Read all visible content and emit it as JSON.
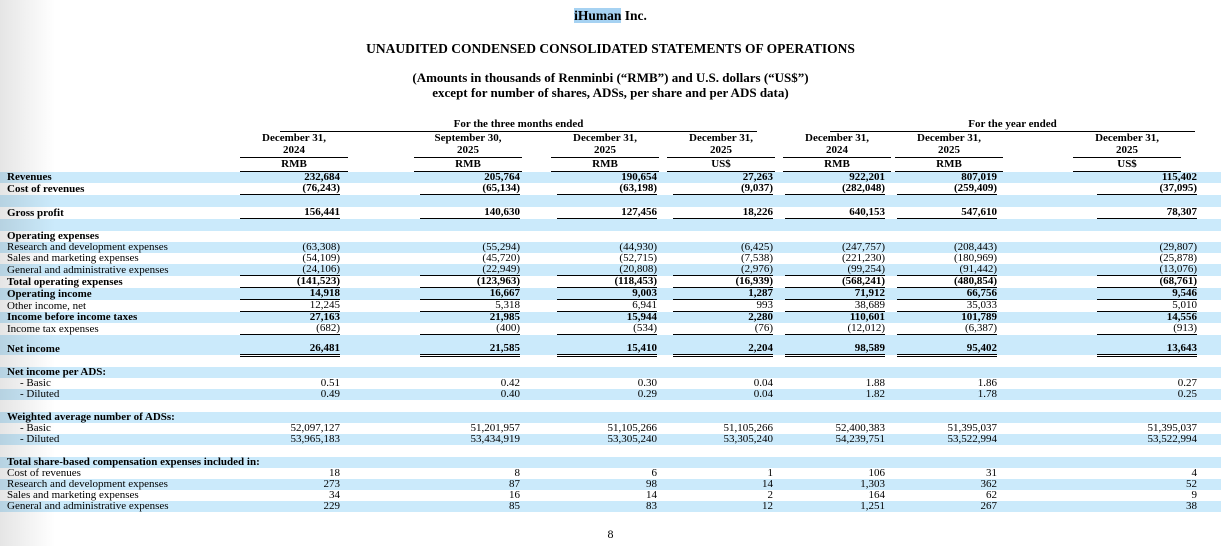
{
  "header": {
    "company_highlight": "iHuman",
    "company_rest": " Inc.",
    "statement_title": "UNAUDITED CONDENSED CONSOLIDATED STATEMENTS OF OPERATIONS",
    "note_line1": "(Amounts in thousands of Renminbi (“RMB”) and U.S. dollars (“US$”)",
    "note_line2": "except for number of shares, ADSs, per share and per ADS data)"
  },
  "colors": {
    "row_shade": "#cbeafb",
    "company_highlight": "#a6d2f2",
    "rule": "#000000"
  },
  "footer": {
    "page_number": "8"
  },
  "table": {
    "groups": [
      {
        "label": "For the three months ended",
        "col_span": 4
      },
      {
        "label": "For the year ended",
        "col_span": 3
      }
    ],
    "columns": [
      {
        "date_line1": "December 31,",
        "date_line2": "2024",
        "currency": "RMB"
      },
      {
        "date_line1": "September 30,",
        "date_line2": "2025",
        "currency": "RMB"
      },
      {
        "date_line1": "December 31,",
        "date_line2": "2025",
        "currency": "RMB"
      },
      {
        "date_line1": "December 31,",
        "date_line2": "2025",
        "currency": "US$"
      },
      {
        "date_line1": "December 31,",
        "date_line2": "2024",
        "currency": "RMB"
      },
      {
        "date_line1": "December 31,",
        "date_line2": "2025",
        "currency": "RMB"
      },
      {
        "date_line1": "December 31,",
        "date_line2": "2025",
        "currency": "US$"
      }
    ],
    "rows": [
      {
        "label": "Revenues",
        "bold": true,
        "shaded": true,
        "values": [
          "232,684",
          "205,764",
          "190,654",
          "27,263",
          "922,201",
          "807,019",
          "115,402"
        ]
      },
      {
        "label": "Cost of revenues",
        "bold": true,
        "shaded": false,
        "underline": "single",
        "values": [
          "(76,243)",
          "(65,134)",
          "(63,198)",
          "(9,037)",
          "(282,048)",
          "(259,409)",
          "(37,095)"
        ]
      },
      {
        "type": "spacer",
        "shaded": true
      },
      {
        "label": "Gross profit",
        "bold": true,
        "shaded": false,
        "underline": "single",
        "values": [
          "156,441",
          "140,630",
          "127,456",
          "18,226",
          "640,153",
          "547,610",
          "78,307"
        ]
      },
      {
        "type": "spacer",
        "shaded": true
      },
      {
        "label": "Operating expenses",
        "bold": true,
        "shaded": false,
        "values": []
      },
      {
        "label": "Research and development expenses",
        "shaded": true,
        "values": [
          "(63,308)",
          "(55,294)",
          "(44,930)",
          "(6,425)",
          "(247,757)",
          "(208,443)",
          "(29,807)"
        ]
      },
      {
        "label": "Sales and marketing expenses",
        "shaded": false,
        "values": [
          "(54,109)",
          "(45,720)",
          "(52,715)",
          "(7,538)",
          "(221,230)",
          "(180,969)",
          "(25,878)"
        ]
      },
      {
        "label": "General and administrative expenses",
        "shaded": true,
        "underline": "single",
        "values": [
          "(24,106)",
          "(22,949)",
          "(20,808)",
          "(2,976)",
          "(99,254)",
          "(91,442)",
          "(13,076)"
        ]
      },
      {
        "label": "Total operating expenses",
        "bold": true,
        "shaded": false,
        "underline": "single",
        "values": [
          "(141,523)",
          "(123,963)",
          "(118,453)",
          "(16,939)",
          "(568,241)",
          "(480,854)",
          "(68,761)"
        ]
      },
      {
        "label": "Operating income",
        "bold": true,
        "shaded": true,
        "underline": "single",
        "values": [
          "14,918",
          "16,667",
          "9,003",
          "1,287",
          "71,912",
          "66,756",
          "9,546"
        ]
      },
      {
        "label": "Other income, net",
        "shaded": false,
        "underline": "single",
        "values": [
          "12,245",
          "5,318",
          "6,941",
          "993",
          "38,689",
          "35,033",
          "5,010"
        ]
      },
      {
        "label": "Income before income taxes",
        "bold": true,
        "shaded": true,
        "values": [
          "27,163",
          "21,985",
          "15,944",
          "2,280",
          "110,601",
          "101,789",
          "14,556"
        ]
      },
      {
        "label": "Income tax expenses",
        "shaded": false,
        "underline": "single",
        "values": [
          "(682)",
          "(400)",
          "(534)",
          "(76)",
          "(12,012)",
          "(6,387)",
          "(913)"
        ]
      },
      {
        "label": "Net income",
        "bold": true,
        "shaded": true,
        "underline": "double",
        "tall": true,
        "values": [
          "26,481",
          "21,585",
          "15,410",
          "2,204",
          "98,589",
          "95,402",
          "13,643"
        ]
      },
      {
        "type": "spacer",
        "shaded": false
      },
      {
        "label": "Net income per ADS:",
        "bold": true,
        "shaded": true,
        "values": []
      },
      {
        "label": "- Basic",
        "indent": true,
        "shaded": false,
        "values": [
          "0.51",
          "0.42",
          "0.30",
          "0.04",
          "1.88",
          "1.86",
          "0.27"
        ]
      },
      {
        "label": "- Diluted",
        "indent": true,
        "shaded": true,
        "values": [
          "0.49",
          "0.40",
          "0.29",
          "0.04",
          "1.82",
          "1.78",
          "0.25"
        ]
      },
      {
        "type": "spacer",
        "shaded": false
      },
      {
        "label": "Weighted average number of ADSs:",
        "bold": true,
        "shaded": true,
        "values": []
      },
      {
        "label": "- Basic",
        "indent": true,
        "shaded": false,
        "values": [
          "52,097,127",
          "51,201,957",
          "51,105,266",
          "51,105,266",
          "52,400,383",
          "51,395,037",
          "51,395,037"
        ]
      },
      {
        "label": "- Diluted",
        "indent": true,
        "shaded": true,
        "values": [
          "53,965,183",
          "53,434,919",
          "53,305,240",
          "53,305,240",
          "54,239,751",
          "53,522,994",
          "53,522,994"
        ]
      },
      {
        "type": "spacer",
        "shaded": false
      },
      {
        "label": "Total share-based compensation expenses included in:",
        "bold": true,
        "shaded": true,
        "values": []
      },
      {
        "label": "Cost of revenues",
        "shaded": false,
        "values": [
          "18",
          "8",
          "6",
          "1",
          "106",
          "31",
          "4"
        ]
      },
      {
        "label": "Research and development expenses",
        "shaded": true,
        "values": [
          "273",
          "87",
          "98",
          "14",
          "1,303",
          "362",
          "52"
        ]
      },
      {
        "label": "Sales and marketing expenses",
        "shaded": false,
        "values": [
          "34",
          "16",
          "14",
          "2",
          "164",
          "62",
          "9"
        ]
      },
      {
        "label": "General and administrative expenses",
        "shaded": true,
        "values": [
          "229",
          "85",
          "83",
          "12",
          "1,251",
          "267",
          "38"
        ]
      }
    ]
  }
}
